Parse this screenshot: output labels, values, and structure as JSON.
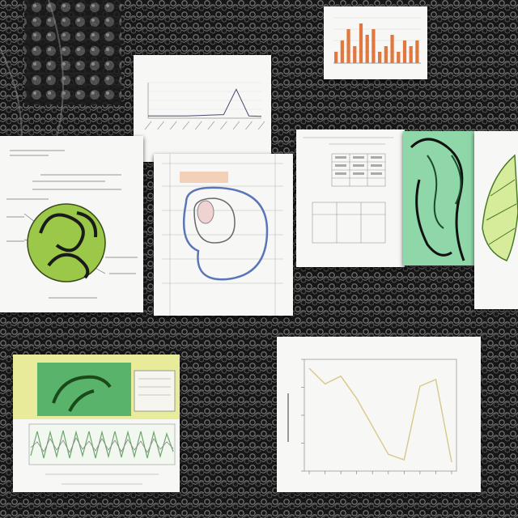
{
  "scene": {
    "description_free": true,
    "background_colors": {
      "base": "#141414",
      "texture_light": "#8a8a8a",
      "texture_dark": "#050505"
    },
    "sheet_color": "#f7f7f5",
    "accent_colors": {
      "orange_bar": "#e07840",
      "green_leaf": "#9cc84a",
      "mint_panel": "#8fd6a8",
      "teal_leaf": "#2f9a7a",
      "yellow_panel": "#e8ec9a",
      "line_tan": "#d8c88a",
      "blue_outline": "#5a76b8"
    }
  },
  "panels": {
    "bar_chart_top": {
      "icon": "bar-chart-icon"
    },
    "spike_chart": {
      "icon": "line-chart-icon",
      "title": "",
      "subtitle": ""
    },
    "leaf_diagram": {
      "icon": "leaf-diagram-icon",
      "caption": ""
    },
    "cell_diagram": {
      "icon": "cell-diagram-icon",
      "label": "",
      "caption": ""
    },
    "table_sheet": {
      "icon": "table-icon"
    },
    "green_plant": {
      "icon": "plant-icon"
    },
    "fern_sheet": {
      "icon": "fern-icon"
    },
    "oscillation_panel": {
      "icon": "waveform-icon"
    },
    "line_chart": {
      "icon": "line-chart-icon",
      "title": "",
      "xlabel": "",
      "ylabel": ""
    }
  },
  "chart_data": [
    {
      "type": "bar",
      "title": "",
      "xlabel": "",
      "ylabel": "",
      "categories": [
        "",
        "",
        "",
        "",
        "",
        "",
        "",
        "",
        "",
        "",
        "",
        "",
        "",
        ""
      ],
      "values": [
        2,
        4,
        6,
        3,
        7,
        5,
        6,
        2,
        3,
        5,
        2,
        4,
        3,
        4
      ],
      "ylim": [
        0,
        8
      ],
      "grid": true,
      "bar_color": "#e07840"
    },
    {
      "type": "line",
      "title": "",
      "xlabel": "",
      "ylabel": "",
      "x": [
        1,
        2,
        3,
        4,
        5,
        6,
        7,
        8,
        9,
        10
      ],
      "y": [
        0.5,
        0.5,
        0.5,
        0.5,
        0.6,
        0.7,
        0.8,
        6.5,
        0.5,
        0.4
      ],
      "ylim": [
        0,
        8
      ],
      "grid": true
    },
    {
      "type": "line",
      "title": "",
      "xlabel": "",
      "ylabel": "",
      "x": [
        1,
        2,
        3,
        4,
        5,
        6,
        7,
        8,
        9,
        10
      ],
      "y": [
        9.2,
        7.8,
        8.5,
        6.5,
        4.0,
        1.5,
        1.0,
        7.6,
        8.2,
        0.8
      ],
      "ylim": [
        0,
        10
      ],
      "grid": true,
      "line_color": "#d8c88a"
    }
  ]
}
